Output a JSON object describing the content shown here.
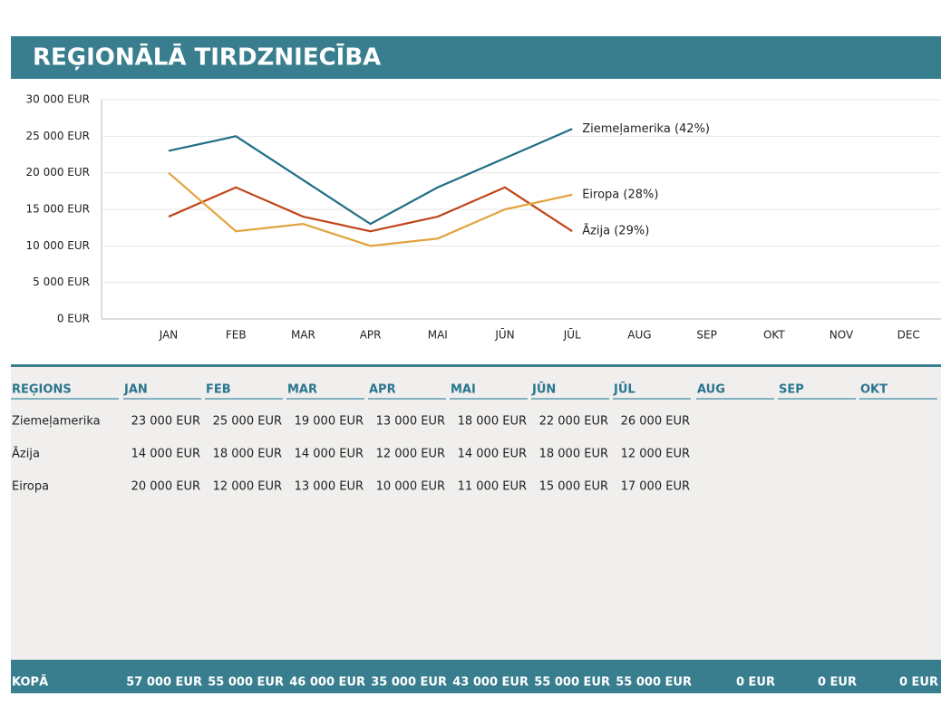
{
  "header": {
    "title": "REĢIONĀLĀ TIRDZNIECĪBA"
  },
  "chart_data": {
    "type": "line",
    "categories": [
      "JAN",
      "FEB",
      "MAR",
      "APR",
      "MAI",
      "JŪN",
      "JŪL",
      "AUG",
      "SEP",
      "OKT",
      "NOV",
      "DEC"
    ],
    "series": [
      {
        "name": "Ziemeļamerika",
        "end_label": "Ziemeļamerika (42%)",
        "color": "#1f6e86",
        "values": [
          23000,
          25000,
          19000,
          13000,
          18000,
          22000,
          26000,
          null,
          null,
          null,
          null,
          null
        ]
      },
      {
        "name": "Āzija",
        "end_label": "Āzija (29%)",
        "color": "#c0461a",
        "values": [
          14000,
          18000,
          14000,
          12000,
          14000,
          18000,
          12000,
          null,
          null,
          null,
          null,
          null
        ]
      },
      {
        "name": "Eiropa",
        "end_label": "Eiropa (28%)",
        "color": "#e2a33e",
        "values": [
          20000,
          12000,
          13000,
          10000,
          11000,
          15000,
          17000,
          null,
          null,
          null,
          null,
          null
        ]
      }
    ],
    "ylim": [
      0,
      30000
    ],
    "yticks": [
      {
        "value": 0,
        "label": "0 EUR"
      },
      {
        "value": 5000,
        "label": "5 000 EUR"
      },
      {
        "value": 10000,
        "label": "10 000 EUR"
      },
      {
        "value": 15000,
        "label": "15 000 EUR"
      },
      {
        "value": 20000,
        "label": "20 000 EUR"
      },
      {
        "value": 25000,
        "label": "25 000 EUR"
      },
      {
        "value": 30000,
        "label": "30 000 EUR"
      }
    ],
    "grid": true
  },
  "table": {
    "header": [
      "REĢIONS",
      "JAN",
      "FEB",
      "MAR",
      "APR",
      "MAI",
      "JŪN",
      "JŪL",
      "AUG",
      "SEP",
      "OKT"
    ],
    "rows": [
      [
        "Ziemeļamerika",
        "23 000 EUR",
        "25 000 EUR",
        "19 000 EUR",
        "13 000 EUR",
        "18 000 EUR",
        "22 000 EUR",
        "26 000 EUR"
      ],
      [
        "Āzija",
        "14 000 EUR",
        "18 000 EUR",
        "14 000 EUR",
        "12 000 EUR",
        "14 000 EUR",
        "18 000 EUR",
        "12 000 EUR"
      ],
      [
        "Eiropa",
        "20 000 EUR",
        "12 000 EUR",
        "13 000 EUR",
        "10 000 EUR",
        "11 000 EUR",
        "15 000 EUR",
        "17 000 EUR"
      ]
    ],
    "total": [
      "KOPĀ",
      "57 000 EUR",
      "55 000 EUR",
      "46 000 EUR",
      "35 000 EUR",
      "43 000 EUR",
      "55 000 EUR",
      "55 000 EUR",
      "0 EUR",
      "0 EUR",
      "0 EUR"
    ]
  }
}
